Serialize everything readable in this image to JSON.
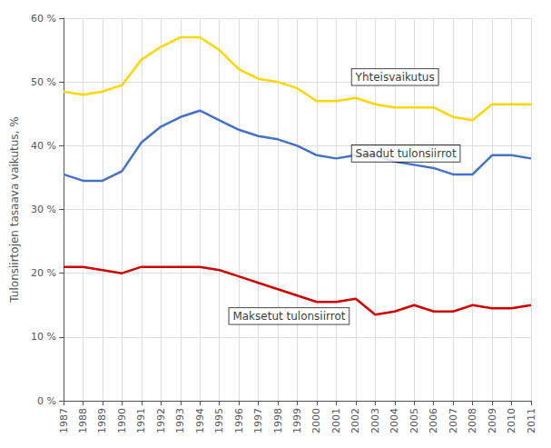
{
  "chart_data": {
    "type": "line",
    "x": [
      1987,
      1988,
      1989,
      1990,
      1991,
      1992,
      1993,
      1994,
      1995,
      1996,
      1997,
      1998,
      1999,
      2000,
      2001,
      2002,
      2003,
      2004,
      2005,
      2006,
      2007,
      2008,
      2009,
      2010,
      2011
    ],
    "series": [
      {
        "name": "Yhteisvaikutus",
        "color": "#FFD700",
        "values": [
          48.5,
          48.0,
          48.5,
          49.5,
          53.5,
          55.5,
          57.0,
          57.0,
          55.0,
          52.0,
          50.5,
          50.0,
          49.0,
          47.0,
          47.0,
          47.5,
          46.5,
          46.0,
          46.0,
          46.0,
          44.5,
          44.0,
          46.5,
          46.5,
          46.5
        ]
      },
      {
        "name": "Saadut tulonsiirrot",
        "color": "#4472C4",
        "values": [
          35.5,
          34.5,
          34.5,
          36.0,
          40.5,
          43.0,
          44.5,
          45.5,
          44.0,
          42.5,
          41.5,
          41.0,
          40.0,
          38.5,
          38.0,
          38.5,
          38.5,
          37.5,
          37.0,
          36.5,
          35.5,
          35.5,
          38.5,
          38.5,
          38.0
        ]
      },
      {
        "name": "Maksetut tulonsiirrot",
        "color": "#CC0000",
        "values": [
          21.0,
          21.0,
          20.5,
          20.0,
          21.0,
          21.0,
          21.0,
          21.0,
          20.5,
          19.5,
          18.5,
          17.5,
          16.5,
          15.5,
          15.5,
          16.0,
          13.5,
          14.0,
          15.0,
          14.0,
          14.0,
          15.0,
          14.5,
          14.5,
          15.0
        ]
      }
    ],
    "annotations": [
      {
        "text": "Yhteisvaikutus",
        "x": 2001.8,
        "y": 49.5
      },
      {
        "text": "Saadut tulonsiirrot",
        "x": 2001.8,
        "y": 37.5
      },
      {
        "text": "Maksetut tulonsiirrot",
        "x": 1995.5,
        "y": 12.0
      }
    ],
    "ylabel": "Tulonsiirtojen tasaava vaikutus, %",
    "xlim": [
      1987,
      2011
    ],
    "xticks": [
      1987,
      1988,
      1989,
      1990,
      1991,
      1992,
      1993,
      1994,
      1995,
      1996,
      1997,
      1998,
      1999,
      2000,
      2001,
      2002,
      2003,
      2004,
      2005,
      2006,
      2007,
      2008,
      2009,
      2010,
      2011
    ],
    "ylim": [
      0,
      60
    ],
    "yticks": [
      {
        "value": 0,
        "label": "0 %"
      },
      {
        "value": 10,
        "label": "10 %"
      },
      {
        "value": 20,
        "label": "20 %"
      },
      {
        "value": 30,
        "label": "30 %"
      },
      {
        "value": 40,
        "label": "40 %"
      },
      {
        "value": 50,
        "label": "50 %"
      },
      {
        "value": 60,
        "label": "60 %"
      }
    ],
    "grid": true
  }
}
